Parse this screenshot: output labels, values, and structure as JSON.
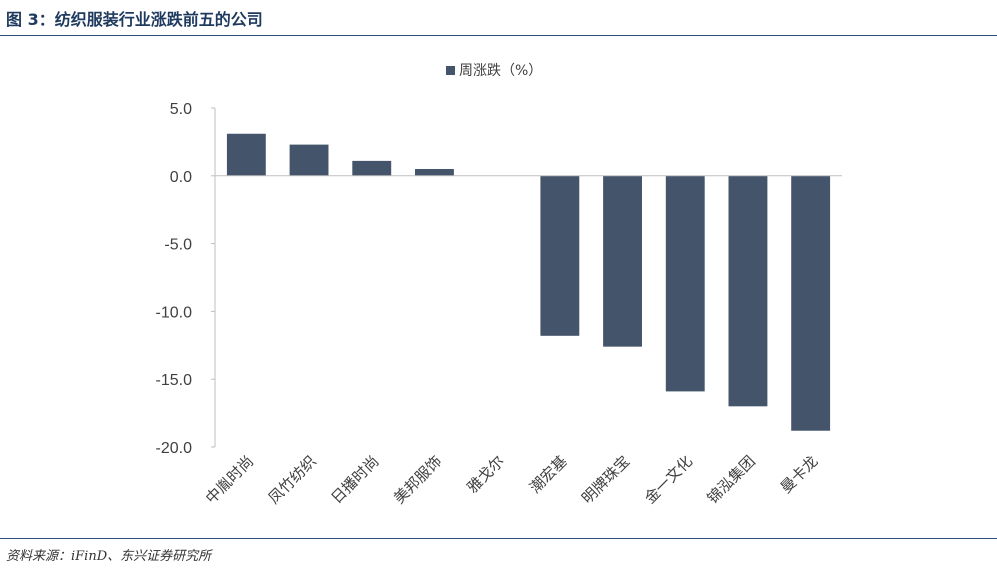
{
  "figure": {
    "title": "图 3：纺织服装行业涨跌前五的公司",
    "source": "资料来源：iFinD、东兴证券研究所"
  },
  "colors": {
    "bar": "#44546a",
    "axis": "#bfbfbf",
    "rule": "#2f4f78"
  },
  "chart_data": {
    "type": "bar",
    "title": "",
    "xlabel": "",
    "ylabel": "",
    "categories": [
      "中胤时尚",
      "凤竹纺织",
      "日播时尚",
      "美邦服饰",
      "雅戈尔",
      "潮宏基",
      "明牌珠宝",
      "金一文化",
      "锦泓集团",
      "曼卡龙"
    ],
    "series": [
      {
        "name": "周涨跌（%）",
        "values": [
          3.1,
          2.3,
          1.1,
          0.5,
          0.0,
          -11.8,
          -12.6,
          -15.9,
          -17.0,
          -18.8
        ]
      }
    ],
    "ylim": [
      -20,
      5
    ],
    "yticks": [
      "5.0",
      "0.0",
      "-5.0",
      "-10.0",
      "-15.0",
      "-20.0"
    ],
    "ytick_values": [
      5,
      0,
      -5,
      -10,
      -15,
      -20
    ],
    "grid": false,
    "legend": "top-center"
  }
}
